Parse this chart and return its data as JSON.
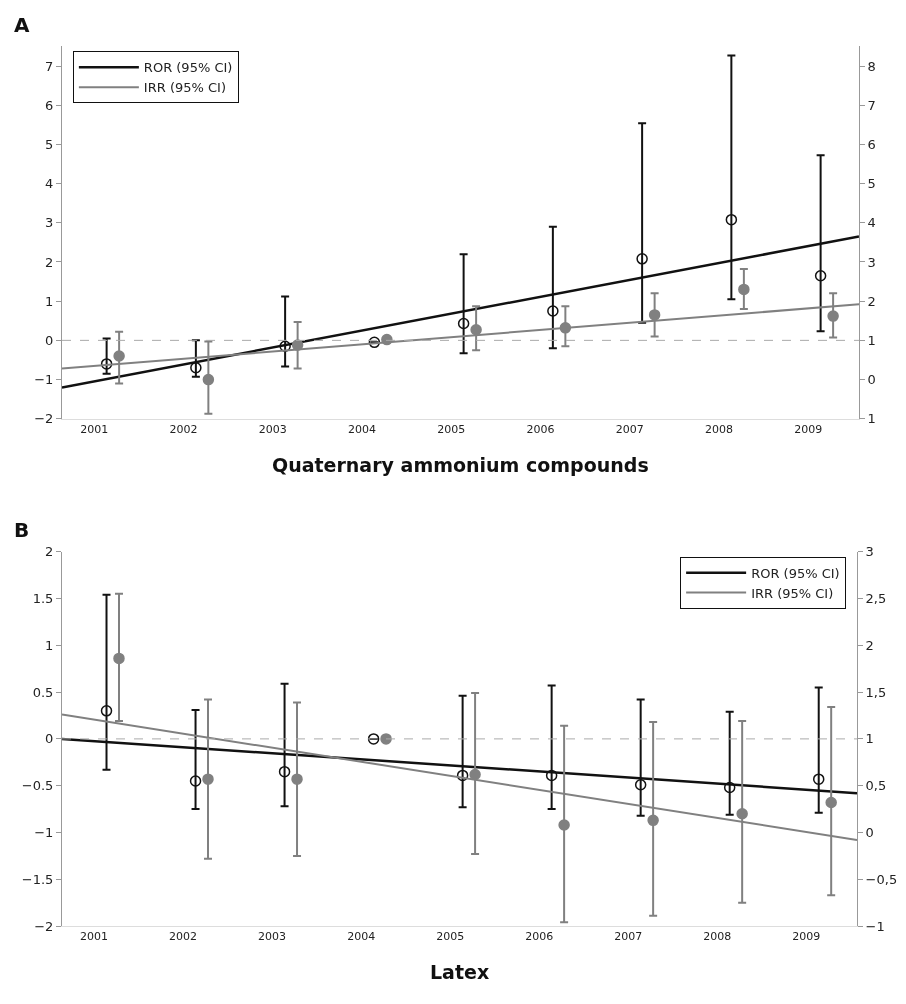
{
  "chart_data": [
    {
      "type": "scatter",
      "title": "A",
      "xlabel": "Quaternary ammonium compounds",
      "xlim": [
        2000.64,
        2009.57
      ],
      "xticks": [
        2001,
        2002,
        2003,
        2004,
        2005,
        2006,
        2007,
        2008,
        2009
      ],
      "ylim": [
        -2,
        7.5
      ],
      "yticks": [
        -2,
        -1,
        0,
        1,
        2,
        3,
        4,
        5,
        6,
        7
      ],
      "y2lim": [
        -1,
        8.5
      ],
      "y2ticks": [
        {
          "value": -1,
          "label": "1"
        },
        0,
        1,
        2,
        3,
        4,
        5,
        6,
        7,
        8
      ],
      "legend": "top left",
      "ref_lines": [
        {
          "axis": "y",
          "value": 0,
          "color": "#aaaaaa",
          "line_style": "dashed"
        }
      ],
      "series": [
        {
          "marker": "circle-open",
          "color": "#111111",
          "x": [
            2001.14,
            2002.14,
            2003.14,
            2004.14,
            2005.14,
            2006.14,
            2007.14,
            2008.14,
            2009.14
          ],
          "values": [
            -0.6,
            -0.7,
            -0.15,
            -0.05,
            0.43,
            0.75,
            2.08,
            3.08,
            1.65
          ],
          "errors": [
            [
              -0.85,
              0.05
            ],
            [
              -0.93,
              0
            ],
            [
              -0.67,
              1.12
            ],
            null,
            [
              -0.33,
              2.2
            ],
            [
              -0.2,
              2.9
            ],
            [
              0.45,
              5.54
            ],
            [
              1.05,
              7.27
            ],
            [
              0.23,
              4.72
            ]
          ]
        },
        {
          "marker": "circle",
          "axis": "y2",
          "color": "#808080",
          "x": [
            2001.28,
            2002.28,
            2003.28,
            2004.28,
            2005.28,
            2006.28,
            2007.28,
            2008.28,
            2009.28
          ],
          "values": [
            0.6,
            0.0,
            0.88,
            1.02,
            1.27,
            1.32,
            1.65,
            2.3,
            1.62
          ],
          "errors": [
            [
              -0.1,
              1.22
            ],
            [
              -0.87,
              0.97
            ],
            [
              0.28,
              1.47
            ],
            null,
            [
              0.75,
              1.87
            ],
            [
              0.85,
              1.87
            ],
            [
              1.1,
              2.2
            ],
            [
              1.8,
              2.82
            ],
            [
              1.07,
              2.2
            ]
          ]
        },
        {
          "type": "line",
          "name": "ROR (95% CI)",
          "color": "#111111",
          "x": [
            2000.64,
            2009.57
          ],
          "values": [
            -1.2,
            2.65
          ]
        },
        {
          "type": "line",
          "name": "IRR (95% CI)",
          "axis": "y2",
          "color": "#808080",
          "x": [
            2000.64,
            2009.57
          ],
          "values": [
            0.28,
            1.92
          ]
        }
      ]
    },
    {
      "type": "scatter",
      "title": "B",
      "xlabel": "Latex",
      "xlim": [
        2000.64,
        2009.57
      ],
      "xticks": [
        2001,
        2002,
        2003,
        2004,
        2005,
        2006,
        2007,
        2008,
        2009
      ],
      "ylim": [
        -2,
        2
      ],
      "yticks": [
        -2,
        -1.5,
        -1,
        -0.5,
        0,
        0.5,
        1,
        1.5,
        2
      ],
      "y2lim": [
        -1,
        3
      ],
      "y2ticks": [
        -1,
        {
          "value": -0.5,
          "label": "−0,5"
        },
        0,
        {
          "value": 0.5,
          "label": "0,5"
        },
        1,
        {
          "value": 1.5,
          "label": "1,5"
        },
        2,
        {
          "value": 2.5,
          "label": "2,5"
        },
        3
      ],
      "legend": "top right",
      "ref_lines": [
        {
          "axis": "y",
          "value": 0,
          "color": "#aaaaaa",
          "line_style": "dashed"
        }
      ],
      "series": [
        {
          "marker": "circle-open",
          "color": "#111111",
          "x": [
            2001.14,
            2002.14,
            2003.14,
            2004.14,
            2005.14,
            2006.14,
            2007.14,
            2008.14,
            2009.14
          ],
          "values": [
            0.3,
            -0.45,
            -0.35,
            0,
            -0.39,
            -0.39,
            -0.49,
            -0.52,
            -0.43
          ],
          "errors": [
            [
              -0.33,
              1.54
            ],
            [
              -0.75,
              0.31
            ],
            [
              -0.72,
              0.59
            ],
            null,
            [
              -0.73,
              0.46
            ],
            [
              -0.75,
              0.57
            ],
            [
              -0.82,
              0.42
            ],
            [
              -0.81,
              0.29
            ],
            [
              -0.79,
              0.55
            ]
          ]
        },
        {
          "marker": "circle",
          "axis": "y2",
          "color": "#808080",
          "x": [
            2001.28,
            2002.28,
            2003.28,
            2004.28,
            2005.28,
            2006.28,
            2007.28,
            2008.28,
            2009.28
          ],
          "values": [
            1.86,
            0.57,
            0.57,
            1.0,
            0.62,
            0.08,
            0.13,
            0.2,
            0.32
          ],
          "errors": [
            [
              1.19,
              2.55
            ],
            [
              -0.28,
              1.42
            ],
            [
              -0.25,
              1.39
            ],
            null,
            [
              -0.23,
              1.49
            ],
            [
              -0.96,
              1.14
            ],
            [
              -0.89,
              1.18
            ],
            [
              -0.75,
              1.19
            ],
            [
              -0.67,
              1.34
            ]
          ]
        },
        {
          "type": "line",
          "name": "ROR (95% CI)",
          "color": "#111111",
          "x": [
            2000.64,
            2009.57
          ],
          "values": [
            0,
            -0.58
          ]
        },
        {
          "type": "line",
          "name": "IRR (95% CI)",
          "axis": "y2",
          "color": "#808080",
          "x": [
            2000.64,
            2009.57
          ],
          "values": [
            1.26,
            -0.08
          ]
        }
      ]
    }
  ]
}
